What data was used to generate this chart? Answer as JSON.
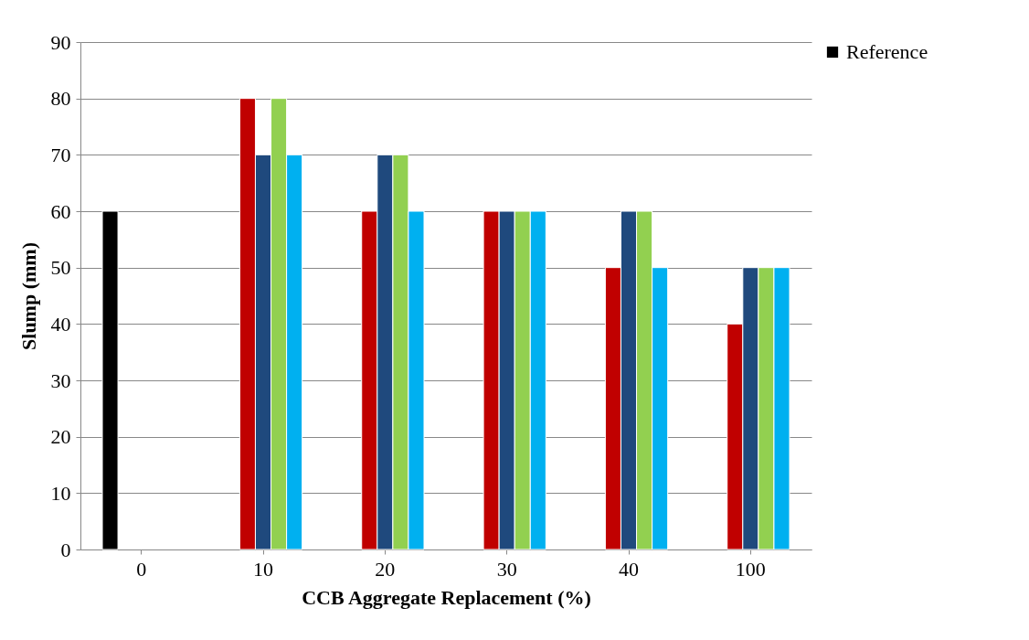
{
  "chart_data": {
    "type": "bar",
    "xlabel": "CCB Aggregate Replacement (%)",
    "ylabel": "Slump (mm)",
    "categories": [
      "0",
      "10",
      "20",
      "30",
      "40",
      "100"
    ],
    "series": [
      {
        "name": "Reference",
        "color": "#000000",
        "values": [
          60,
          null,
          null,
          null,
          null,
          null
        ]
      },
      {
        "color": "#c00000",
        "values": [
          null,
          80,
          60,
          60,
          50,
          40
        ]
      },
      {
        "color": "#1f497d",
        "values": [
          null,
          70,
          70,
          60,
          60,
          50
        ]
      },
      {
        "color": "#92d050",
        "values": [
          null,
          80,
          70,
          60,
          60,
          50
        ]
      },
      {
        "color": "#00b0f0",
        "values": [
          null,
          70,
          60,
          60,
          50,
          50
        ]
      }
    ],
    "ylim": [
      0,
      90
    ],
    "yticks": [
      0,
      10,
      20,
      30,
      40,
      50,
      60,
      70,
      80,
      90
    ],
    "grid": "y",
    "legend": "right"
  }
}
